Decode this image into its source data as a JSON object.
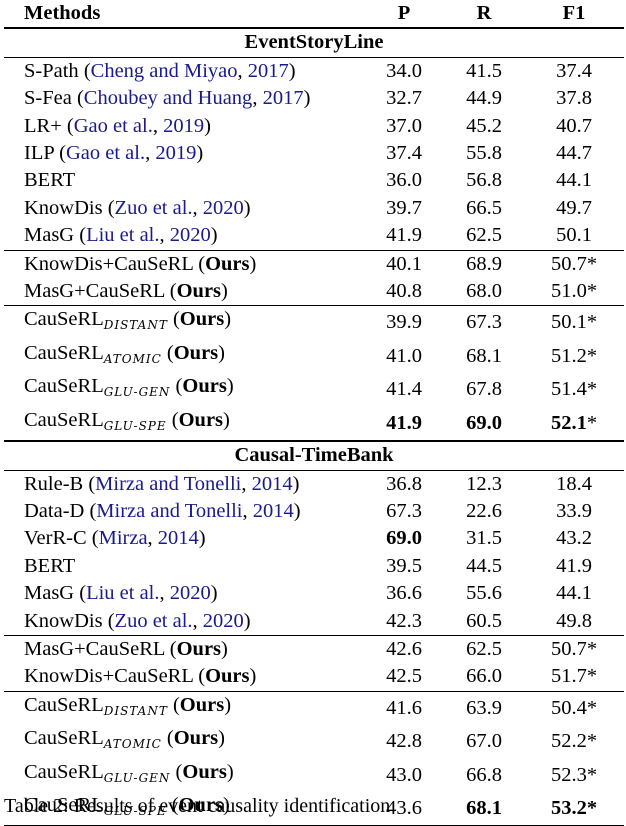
{
  "header": {
    "methods": "Methods",
    "p": "P",
    "r": "R",
    "f1": "F1"
  },
  "sections": [
    {
      "title": "EventStoryLine",
      "groups": [
        [
          {
            "name": "S-Path",
            "cite": "Cheng and Miyao",
            "year": "2017",
            "p": "34.0",
            "r": "41.5",
            "f1": "37.4"
          },
          {
            "name": "S-Fea",
            "cite": "Choubey and Huang",
            "year": "2017",
            "p": "32.7",
            "r": "44.9",
            "f1": "37.8"
          },
          {
            "name": "LR+",
            "cite": "Gao et al.",
            "year": "2019",
            "p": "37.0",
            "r": "45.2",
            "f1": "40.7"
          },
          {
            "name": "ILP",
            "cite": "Gao et al.",
            "year": "2019",
            "p": "37.4",
            "r": "55.8",
            "f1": "44.7"
          },
          {
            "name": "BERT",
            "p": "36.0",
            "r": "56.8",
            "f1": "44.1"
          },
          {
            "name": "KnowDis",
            "cite": "Zuo et al.",
            "year": "2020",
            "p": "39.7",
            "r": "66.5",
            "f1": "49.7"
          },
          {
            "name": "MasG",
            "cite": "Liu et al.",
            "year": "2020",
            "p": "41.9",
            "r": "62.5",
            "f1": "50.1"
          }
        ],
        [
          {
            "name": "KnowDis+CauSeRL",
            "ours": "Ours",
            "p": "40.1",
            "r": "68.9",
            "f1": "50.7",
            "star": "*"
          },
          {
            "name": "MasG+CauSeRL",
            "ours": "Ours",
            "p": "40.8",
            "r": "68.0",
            "f1": "51.0",
            "star": "*"
          }
        ],
        [
          {
            "name": "CauSeRL",
            "sub": "DISTANT",
            "ours": "Ours",
            "p": "39.9",
            "r": "67.3",
            "f1": "50.1",
            "star": "*"
          },
          {
            "name": "CauSeRL",
            "sub": "ATOMIC",
            "ours": "Ours",
            "p": "41.0",
            "r": "68.1",
            "f1": "51.2",
            "star": "*"
          },
          {
            "name": "CauSeRL",
            "sub": "GLU-GEN",
            "ours": "Ours",
            "p": "41.4",
            "r": "67.8",
            "f1": "51.4",
            "star": "*"
          },
          {
            "name": "CauSeRL",
            "sub": "GLU-SPE",
            "ours": "Ours",
            "p": "41.9",
            "r": "69.0",
            "f1": "52.1",
            "star": "*",
            "bold": [
              "p",
              "r",
              "f1"
            ]
          }
        ]
      ]
    },
    {
      "title": "Causal-TimeBank",
      "groups": [
        [
          {
            "name": "Rule-B",
            "cite": "Mirza and Tonelli",
            "year": "2014",
            "p": "36.8",
            "r": "12.3",
            "f1": "18.4"
          },
          {
            "name": "Data-D",
            "cite": "Mirza and Tonelli",
            "year": "2014",
            "p": "67.3",
            "r": "22.6",
            "f1": "33.9"
          },
          {
            "name": "VerR-C",
            "cite": "Mirza",
            "year": "2014",
            "p": "69.0",
            "r": "31.5",
            "f1": "43.2",
            "bold": [
              "p"
            ]
          },
          {
            "name": "BERT",
            "p": "39.5",
            "r": "44.5",
            "f1": "41.9"
          },
          {
            "name": "MasG",
            "cite": "Liu et al.",
            "year": "2020",
            "p": "36.6",
            "r": "55.6",
            "f1": "44.1"
          },
          {
            "name": "KnowDis",
            "cite": "Zuo et al.",
            "year": "2020",
            "p": "42.3",
            "r": "60.5",
            "f1": "49.8"
          }
        ],
        [
          {
            "name": "MasG+CauSeRL",
            "ours": "Ours",
            "p": "42.6",
            "r": "62.5",
            "f1": "50.7",
            "star": "*"
          },
          {
            "name": "KnowDis+CauSeRL",
            "ours": "Ours",
            "p": "42.5",
            "r": "66.0",
            "f1": "51.7",
            "star": "*"
          }
        ],
        [
          {
            "name": "CauSeRL",
            "sub": "DISTANT",
            "ours": "Ours",
            "p": "41.6",
            "r": "63.9",
            "f1": "50.4",
            "star": "*"
          },
          {
            "name": "CauSeRL",
            "sub": "ATOMIC",
            "ours": "Ours",
            "p": "42.8",
            "r": "67.0",
            "f1": "52.2",
            "star": "*"
          },
          {
            "name": "CauSeRL",
            "sub": "GLU-GEN",
            "ours": "Ours",
            "p": "43.0",
            "r": "66.8",
            "f1": "52.3",
            "star": "*"
          },
          {
            "name": "CauSeRL",
            "sub": "GLU-SPE",
            "ours": "Ours",
            "p": "43.6",
            "r": "68.1",
            "f1": "53.2",
            "star": "*",
            "bold": [
              "r",
              "f1",
              "star"
            ]
          }
        ]
      ]
    }
  ],
  "caption": "Table 2: Results of event causality identification"
}
